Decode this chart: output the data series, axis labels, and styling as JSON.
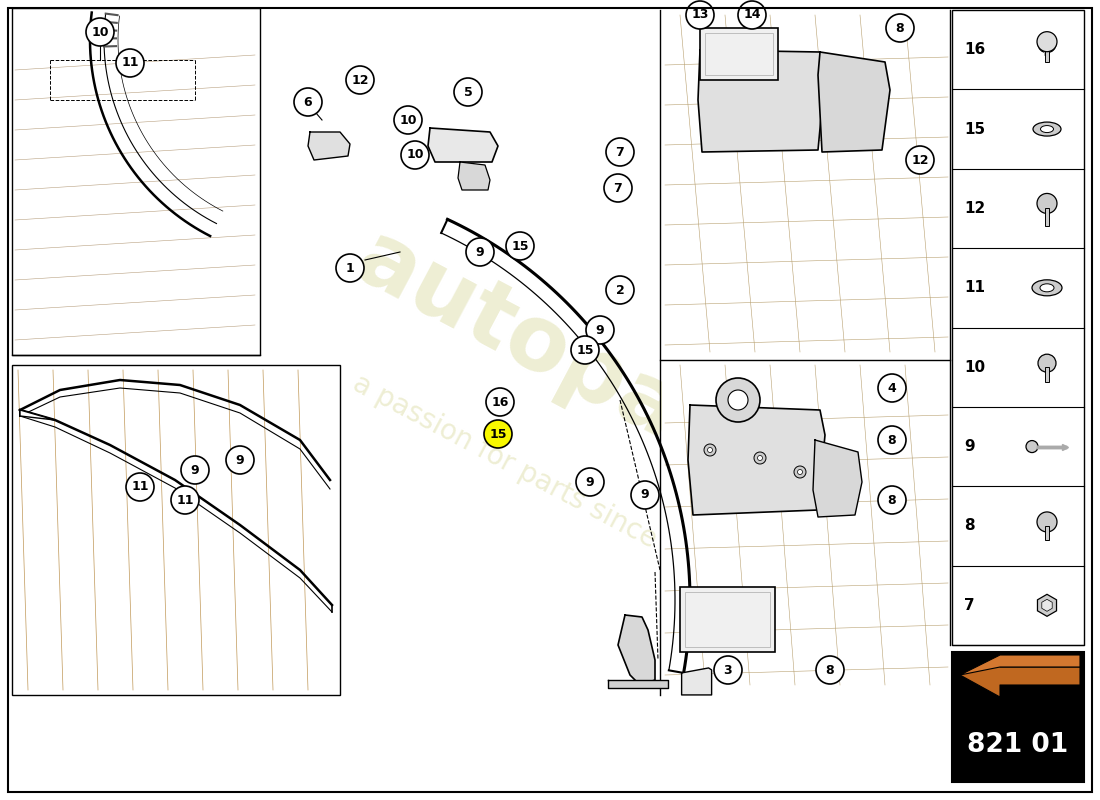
{
  "background_color": "#ffffff",
  "part_number": "821 01",
  "watermark_color": "#e0e0b0",
  "border_color": "#000000",
  "parts_table_items": [
    16,
    15,
    12,
    11,
    10,
    9,
    8,
    7
  ]
}
